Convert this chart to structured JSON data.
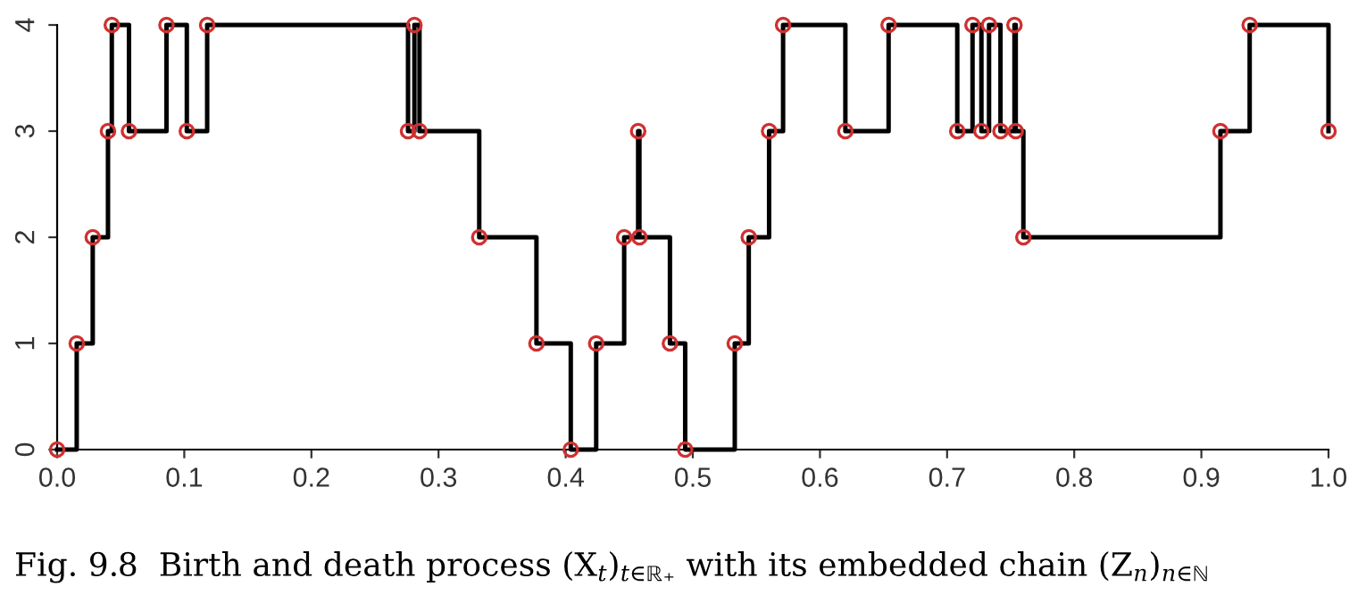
{
  "chart_data": {
    "type": "step",
    "annotations": [
      "Fig. 9.8  Birth and death process (X$_{t}$)$_{t∈ℝ₊}$ with its embedded chain (Z$_{n}$)$_{n∈ℕ}$"
    ],
    "series": [
      {
        "color": "#000000",
        "x": [
          0,
          0.0154,
          0.028,
          0.04,
          0.043,
          0.0565,
          0.086,
          0.102,
          0.118,
          0.276,
          0.281,
          0.285,
          0.332,
          0.377,
          0.404,
          0.424,
          0.446,
          0.457,
          0.458,
          0.482,
          0.494,
          0.533,
          0.544,
          0.56,
          0.571,
          0.62,
          0.654,
          0.708,
          0.72,
          0.727,
          0.733,
          0.742,
          0.753,
          0.754,
          0.76,
          0.915,
          0.938,
          1.0
        ],
        "values": [
          0,
          1,
          2,
          3,
          4,
          3,
          4,
          3,
          4,
          3,
          4,
          3,
          2,
          1,
          0,
          1,
          2,
          3,
          2,
          1,
          0,
          1,
          2,
          3,
          4,
          3,
          4,
          3,
          4,
          3,
          4,
          3,
          4,
          3,
          2,
          3,
          4,
          3
        ]
      },
      {
        "type": "scatter",
        "color": "#d03030",
        "marker": "circle",
        "x": [
          0,
          0.0154,
          0.028,
          0.04,
          0.043,
          0.0565,
          0.086,
          0.102,
          0.118,
          0.276,
          0.281,
          0.285,
          0.332,
          0.377,
          0.404,
          0.424,
          0.446,
          0.457,
          0.458,
          0.482,
          0.494,
          0.533,
          0.544,
          0.56,
          0.571,
          0.62,
          0.654,
          0.708,
          0.72,
          0.727,
          0.733,
          0.742,
          0.753,
          0.754,
          0.76,
          0.915,
          0.938,
          1.0
        ],
        "values": [
          0,
          1,
          2,
          3,
          4,
          3,
          4,
          3,
          4,
          3,
          4,
          3,
          2,
          1,
          0,
          1,
          2,
          3,
          2,
          1,
          0,
          1,
          2,
          3,
          4,
          3,
          4,
          3,
          4,
          3,
          4,
          3,
          4,
          3,
          2,
          3,
          4,
          3
        ]
      }
    ],
    "xlim": [
      0,
      1
    ],
    "xticks": [
      {
        "value": 0,
        "label": "0.0"
      },
      0.1,
      0.2,
      0.3,
      0.4,
      0.5,
      0.6,
      0.7,
      0.8,
      0.9,
      {
        "value": 1,
        "label": "1.0"
      }
    ],
    "ylim": [
      0,
      4
    ],
    "yticks": [
      0,
      1,
      2,
      3,
      4
    ],
    "grid": false,
    "legend": false
  }
}
